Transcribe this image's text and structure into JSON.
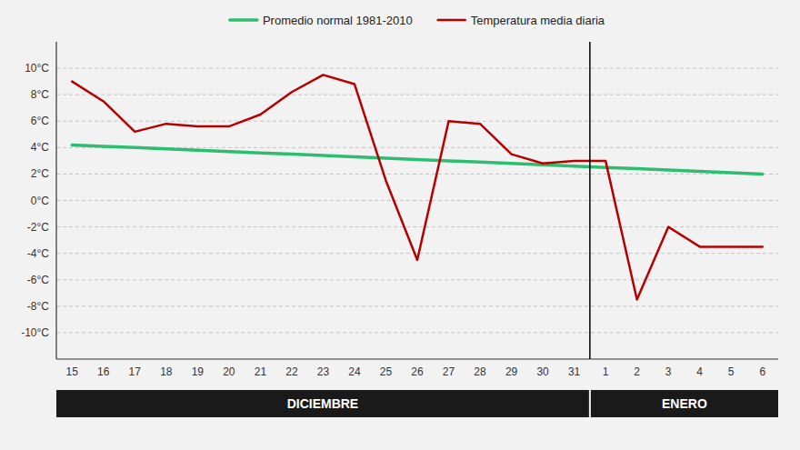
{
  "chart_data": {
    "type": "line",
    "categories": [
      "15",
      "16",
      "17",
      "18",
      "19",
      "20",
      "21",
      "22",
      "23",
      "24",
      "25",
      "26",
      "27",
      "28",
      "29",
      "30",
      "31",
      "1",
      "2",
      "3",
      "4",
      "5",
      "6"
    ],
    "series": [
      {
        "name": "Promedio normal 1981-2010",
        "color": "#2dbd6e",
        "values": [
          4.2,
          4.1,
          4.0,
          3.9,
          3.8,
          3.7,
          3.6,
          3.5,
          3.4,
          3.3,
          3.2,
          3.1,
          3.0,
          2.9,
          2.8,
          2.7,
          2.6,
          2.5,
          2.4,
          2.3,
          2.2,
          2.1,
          2.0
        ]
      },
      {
        "name": "Temperatura media diaria",
        "color": "#b50000",
        "values": [
          9.0,
          7.5,
          5.2,
          5.8,
          5.6,
          5.6,
          6.5,
          8.2,
          9.5,
          8.8,
          1.5,
          -4.5,
          6.0,
          5.8,
          3.5,
          2.8,
          3.0,
          3.0,
          -7.5,
          -2.0,
          -3.5,
          -3.5,
          -3.5
        ]
      }
    ],
    "annotations": [
      "DICIEMBRE",
      "ENERO"
    ],
    "ylim": [
      -12,
      12
    ],
    "yticks": [
      {
        "value": -10,
        "label": "-10°C"
      },
      {
        "value": -8,
        "label": "-8°C"
      },
      {
        "value": -6,
        "label": "-6°C"
      },
      {
        "value": -4,
        "label": "-4°C"
      },
      {
        "value": -2,
        "label": "-2°C"
      },
      {
        "value": 0,
        "label": "0°C"
      },
      {
        "value": 2,
        "label": "2°C"
      },
      {
        "value": 4,
        "label": "4°C"
      },
      {
        "value": 6,
        "label": "6°C"
      },
      {
        "value": 8,
        "label": "8°C"
      },
      {
        "value": 10,
        "label": "10°C"
      }
    ],
    "grid": true,
    "legend": "top"
  }
}
